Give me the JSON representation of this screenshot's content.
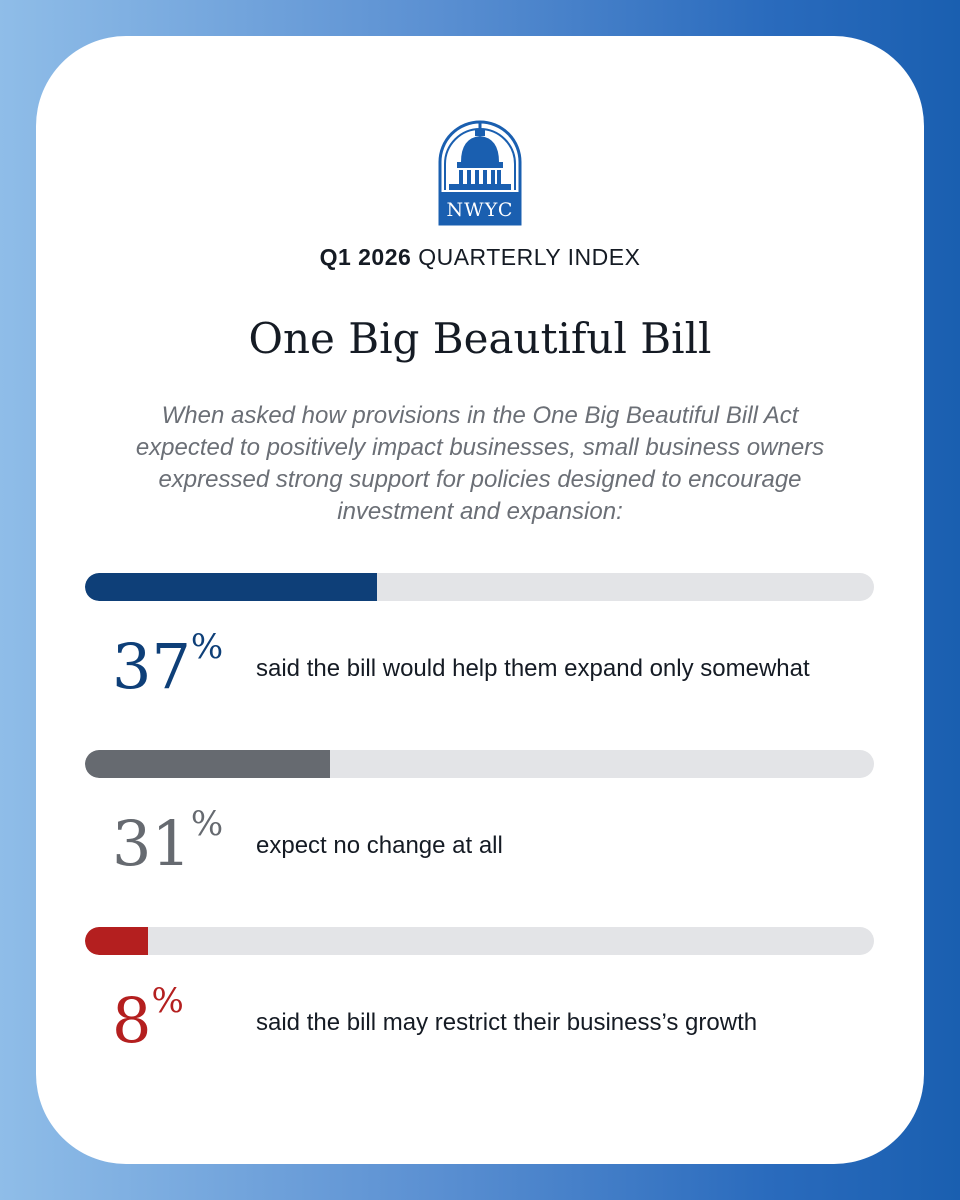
{
  "header": {
    "logo_text": "NWYC",
    "index_bold": "Q1 2026",
    "index_rest": "QUARTERLY INDEX"
  },
  "headline": "One Big Beautiful Bill",
  "intro": "When asked how provisions in the One Big Beautiful Bill Act expected to positively impact businesses, small business owners expressed strong support for policies designed to encourage investment and expansion:",
  "stats": [
    {
      "value": "37",
      "suffix": "%",
      "percent": 37,
      "label": "said the bill would help them expand only somewhat",
      "color": "#0e3f78"
    },
    {
      "value": "31",
      "suffix": "%",
      "percent": 31,
      "label": "expect no change at all",
      "color": "#666a70"
    },
    {
      "value": "8",
      "suffix": "%",
      "percent": 8,
      "label": "said the bill may restrict their business’s growth",
      "color": "#b41f1f"
    }
  ],
  "colors": {
    "brand_blue": "#1a5fb0",
    "track": "#e3e4e7"
  }
}
